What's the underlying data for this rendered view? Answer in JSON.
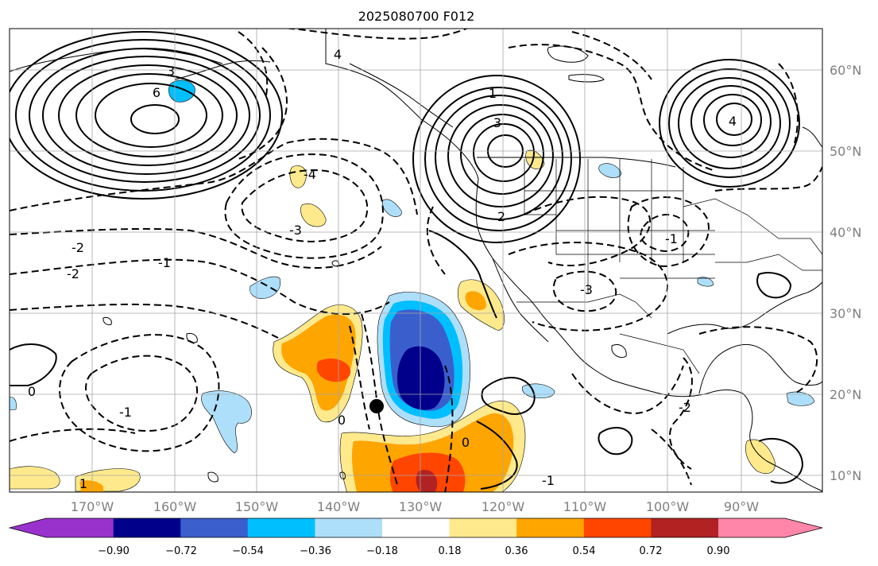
{
  "map": {
    "title": "2025080700 F012",
    "lon_labels": [
      "170°W",
      "160°W",
      "150°W",
      "140°W",
      "130°W",
      "120°W",
      "110°W",
      "100°W",
      "90°W"
    ],
    "lat_labels": [
      "60°N",
      "50°N",
      "40°N",
      "30°N",
      "20°N",
      "10°N"
    ],
    "colorbar": {
      "ticks": [
        "−0.90",
        "−0.72",
        "−0.54",
        "−0.36",
        "−0.18",
        "0.18",
        "0.36",
        "0.54",
        "0.72",
        "0.90"
      ],
      "colors": [
        "#9932cc",
        "#00008b",
        "#3a5fcd",
        "#00bfff",
        "#aedffa",
        "#ffffff",
        "#fee98c",
        "#ffa500",
        "#ff4500",
        "#b22222",
        "#ff86a8"
      ]
    },
    "contour_labels": [
      "3",
      "4",
      "6",
      "-4",
      "-3",
      "-2",
      "-1",
      "-1",
      "1",
      "3",
      "2",
      "4",
      "-2",
      "-3",
      "-1",
      "0",
      "-2",
      "-1",
      "0",
      "1",
      "0"
    ],
    "marker": "station-dot"
  }
}
